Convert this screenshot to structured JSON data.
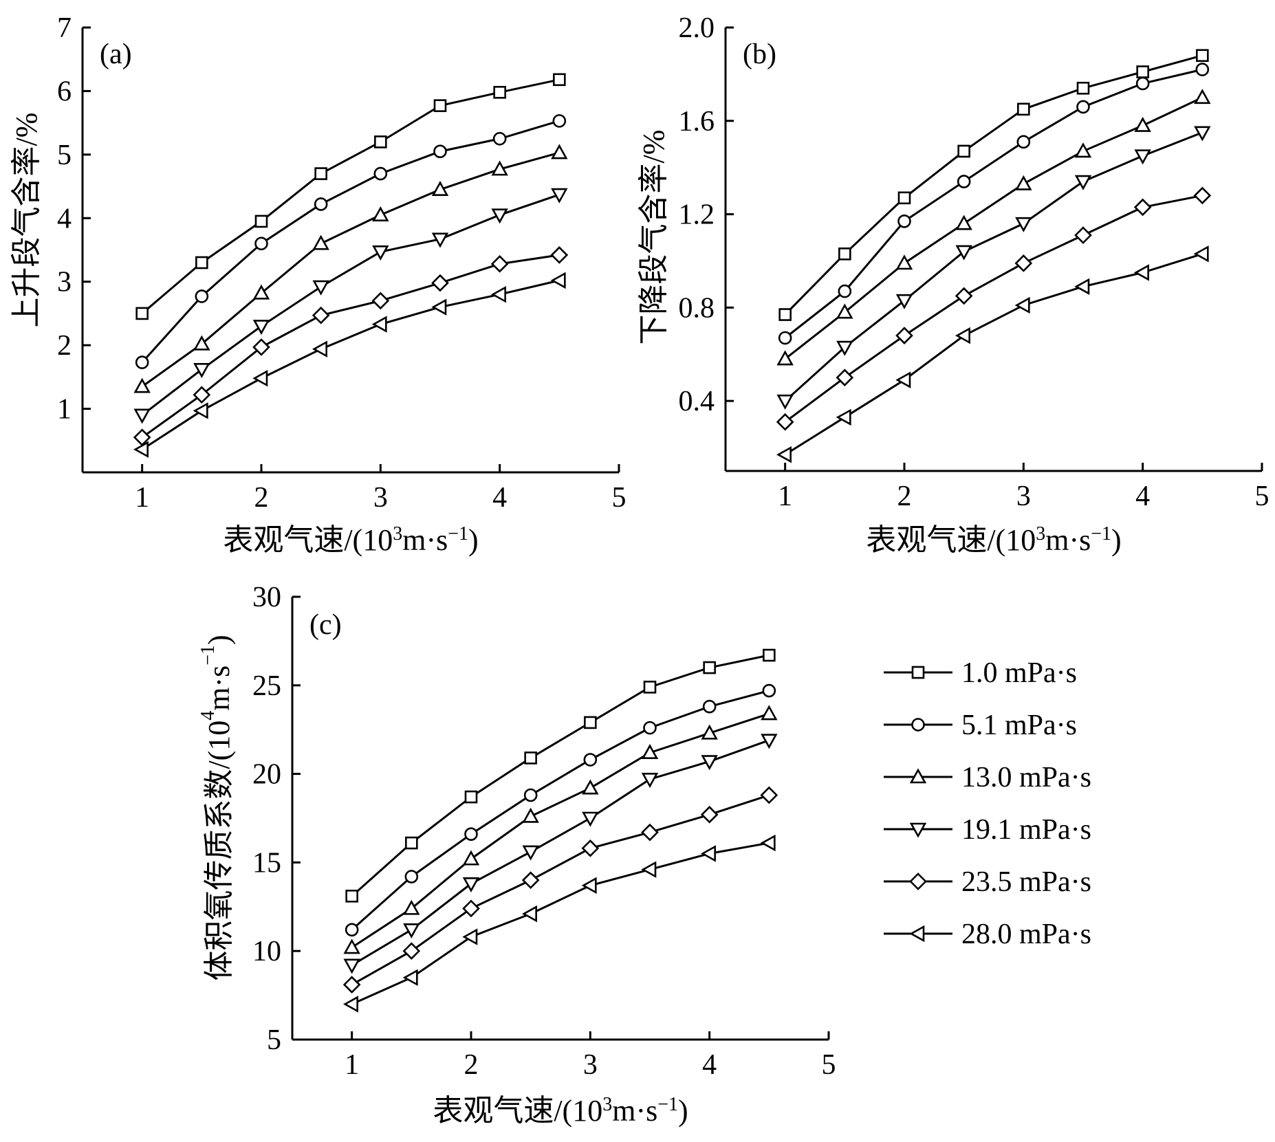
{
  "series_meta": [
    {
      "name": "1.0 mPa·s",
      "marker": "square"
    },
    {
      "name": "5.1 mPa·s",
      "marker": "circle"
    },
    {
      "name": "13.0 mPa·s",
      "marker": "triangle-up"
    },
    {
      "name": "19.1 mPa·s",
      "marker": "triangle-down"
    },
    {
      "name": "23.5 mPa·s",
      "marker": "diamond"
    },
    {
      "name": "28.0 mPa·s",
      "marker": "triangle-left"
    }
  ],
  "colors": {
    "line": "#000000",
    "marker_fill": "#ffffff",
    "background": "#ffffff"
  },
  "chart_data": [
    {
      "type": "line",
      "panel_label": "(a)",
      "xlabel": "表观气速/(10³m·s⁻¹)",
      "ylabel": "上升段气含率/%",
      "xlim": [
        0.5,
        5
      ],
      "ylim": [
        0,
        7
      ],
      "xticks": [
        1,
        2,
        3,
        4,
        5
      ],
      "yticks": [
        1,
        2,
        3,
        4,
        5,
        6,
        7
      ],
      "ytick_labels": [
        "1",
        "2",
        "3",
        "4",
        "5",
        "6",
        "7"
      ],
      "x": [
        1,
        1.5,
        2,
        2.5,
        3,
        3.5,
        4,
        4.5
      ],
      "grid": false,
      "series": [
        {
          "name": "1.0 mPa·s",
          "values": [
            2.5,
            3.3,
            3.95,
            4.7,
            5.2,
            5.77,
            5.98,
            6.18
          ]
        },
        {
          "name": "5.1 mPa·s",
          "values": [
            1.73,
            2.77,
            3.6,
            4.22,
            4.7,
            5.05,
            5.25,
            5.53
          ]
        },
        {
          "name": "13.0 mPa·s",
          "values": [
            1.35,
            2.02,
            2.82,
            3.6,
            4.05,
            4.45,
            4.77,
            5.03
          ]
        },
        {
          "name": "19.1 mPa·s",
          "values": [
            0.9,
            1.62,
            2.3,
            2.92,
            3.47,
            3.67,
            4.05,
            4.37
          ]
        },
        {
          "name": "23.5 mPa·s",
          "values": [
            0.55,
            1.22,
            1.97,
            2.47,
            2.7,
            2.98,
            3.28,
            3.42
          ]
        },
        {
          "name": "28.0 mPa·s",
          "values": [
            0.36,
            0.97,
            1.48,
            1.94,
            2.33,
            2.6,
            2.8,
            3.02
          ]
        }
      ]
    },
    {
      "type": "line",
      "panel_label": "(b)",
      "xlabel": "表观气速/(10³m·s⁻¹)",
      "ylabel": "下降段气含率/%",
      "xlim": [
        0.5,
        5
      ],
      "ylim": [
        0.1,
        2.0
      ],
      "xticks": [
        1,
        2,
        3,
        4,
        5
      ],
      "yticks": [
        0.4,
        0.8,
        1.2,
        1.6,
        2.0
      ],
      "ytick_labels": [
        "0.4",
        "0.8",
        "1.2",
        "1.6",
        "2.0"
      ],
      "x": [
        1,
        1.5,
        2,
        2.5,
        3,
        3.5,
        4,
        4.5
      ],
      "grid": false,
      "series": [
        {
          "name": "1.0 mPa·s",
          "values": [
            0.77,
            1.03,
            1.27,
            1.47,
            1.65,
            1.74,
            1.81,
            1.88
          ]
        },
        {
          "name": "5.1 mPa·s",
          "values": [
            0.67,
            0.87,
            1.17,
            1.34,
            1.51,
            1.66,
            1.76,
            1.82
          ]
        },
        {
          "name": "13.0 mPa·s",
          "values": [
            0.58,
            0.78,
            0.99,
            1.16,
            1.33,
            1.47,
            1.58,
            1.7
          ]
        },
        {
          "name": "19.1 mPa·s",
          "values": [
            0.4,
            0.63,
            0.83,
            1.04,
            1.16,
            1.34,
            1.45,
            1.55
          ]
        },
        {
          "name": "23.5 mPa·s",
          "values": [
            0.31,
            0.5,
            0.68,
            0.85,
            0.99,
            1.11,
            1.23,
            1.28
          ]
        },
        {
          "name": "28.0 mPa·s",
          "values": [
            0.17,
            0.33,
            0.49,
            0.68,
            0.81,
            0.89,
            0.95,
            1.03
          ]
        }
      ]
    },
    {
      "type": "line",
      "panel_label": "(c)",
      "xlabel": "表观气速/(10³m·s⁻¹)",
      "ylabel": "体积氧传质系数/(10⁴m·s⁻¹)",
      "xlim": [
        0.5,
        5
      ],
      "ylim": [
        5,
        30
      ],
      "xticks": [
        1,
        2,
        3,
        4,
        5
      ],
      "yticks": [
        5,
        10,
        15,
        20,
        25,
        30
      ],
      "ytick_labels": [
        "5",
        "10",
        "15",
        "20",
        "25",
        "30"
      ],
      "x": [
        1,
        1.5,
        2,
        2.5,
        3,
        3.5,
        4,
        4.5
      ],
      "grid": false,
      "series": [
        {
          "name": "1.0 mPa·s",
          "values": [
            13.1,
            16.1,
            18.7,
            20.9,
            22.9,
            24.9,
            26.0,
            26.7
          ]
        },
        {
          "name": "5.1 mPa·s",
          "values": [
            11.2,
            14.2,
            16.6,
            18.8,
            20.8,
            22.6,
            23.8,
            24.7
          ]
        },
        {
          "name": "13.0 mPa·s",
          "values": [
            10.2,
            12.4,
            15.2,
            17.6,
            19.2,
            21.2,
            22.3,
            23.4
          ]
        },
        {
          "name": "19.1 mPa·s",
          "values": [
            9.2,
            11.2,
            13.8,
            15.6,
            17.5,
            19.7,
            20.7,
            21.9
          ]
        },
        {
          "name": "23.5 mPa·s",
          "values": [
            8.1,
            10.0,
            12.4,
            14.0,
            15.8,
            16.7,
            17.7,
            18.8
          ]
        },
        {
          "name": "28.0 mPa·s",
          "values": [
            7.0,
            8.5,
            10.8,
            12.1,
            13.7,
            14.6,
            15.5,
            16.1
          ]
        }
      ]
    }
  ]
}
